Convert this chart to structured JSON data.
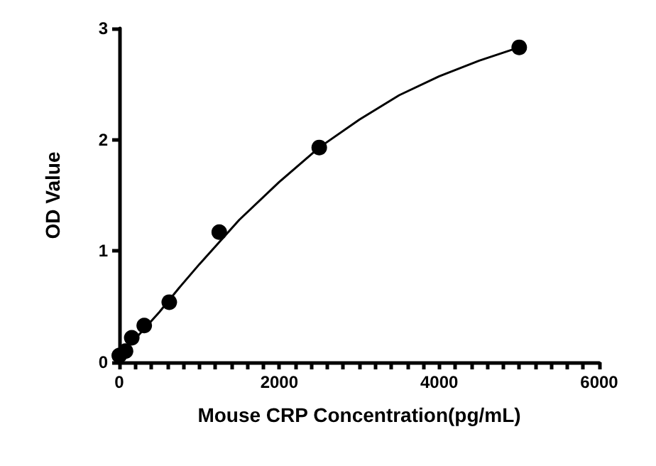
{
  "chart_data": {
    "type": "scatter",
    "xlabel": "Mouse CRP Concentration(pg/mL)",
    "ylabel": "OD Value",
    "xlim": [
      0,
      6000
    ],
    "ylim": [
      0,
      3
    ],
    "xticks": [
      0,
      {
        "value": 200,
        "label": null
      },
      {
        "value": 400,
        "label": null
      },
      {
        "value": 600,
        "label": null
      },
      {
        "value": 800,
        "label": null
      },
      {
        "value": 1000,
        "label": null
      },
      {
        "value": 1200,
        "label": null
      },
      {
        "value": 1400,
        "label": null
      },
      {
        "value": 1600,
        "label": null
      },
      {
        "value": 1800,
        "label": null
      },
      2000,
      {
        "value": 2200,
        "label": null
      },
      {
        "value": 2400,
        "label": null
      },
      {
        "value": 2600,
        "label": null
      },
      {
        "value": 2800,
        "label": null
      },
      {
        "value": 3000,
        "label": null
      },
      {
        "value": 3200,
        "label": null
      },
      {
        "value": 3400,
        "label": null
      },
      {
        "value": 3600,
        "label": null
      },
      {
        "value": 3800,
        "label": null
      },
      4000,
      {
        "value": 4200,
        "label": null
      },
      {
        "value": 4400,
        "label": null
      },
      {
        "value": 4600,
        "label": null
      },
      {
        "value": 4800,
        "label": null
      },
      {
        "value": 5000,
        "label": null
      },
      {
        "value": 5200,
        "label": null
      },
      {
        "value": 5400,
        "label": null
      },
      {
        "value": 5600,
        "label": null
      },
      {
        "value": 5800,
        "label": null
      },
      6000
    ],
    "yticks": [
      0,
      1,
      2,
      3
    ],
    "grid": false,
    "series": [
      {
        "type": "line",
        "marker": "none",
        "color": "#000000",
        "x": [
          0,
          250,
          500,
          750,
          1000,
          1500,
          2000,
          2500,
          3000,
          3500,
          4000,
          4500,
          5000
        ],
        "values": [
          0.05,
          0.25,
          0.45,
          0.67,
          0.88,
          1.28,
          1.62,
          1.93,
          2.18,
          2.4,
          2.57,
          2.71,
          2.83
        ]
      },
      {
        "marker": "circle",
        "color": "#000000",
        "x": [
          0,
          78,
          156,
          312,
          625,
          1250,
          2500,
          5000
        ],
        "values": [
          0.06,
          0.1,
          0.22,
          0.33,
          0.54,
          1.17,
          1.93,
          2.83
        ]
      }
    ]
  }
}
